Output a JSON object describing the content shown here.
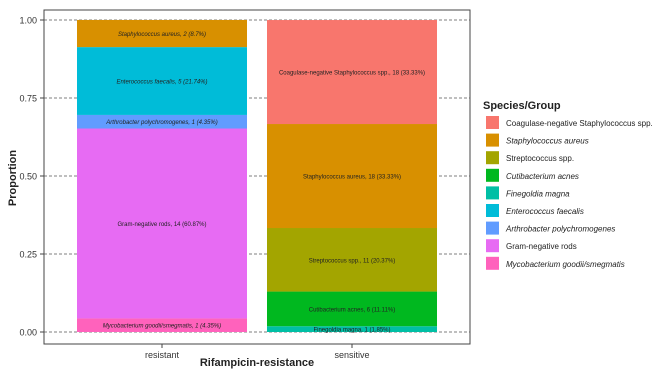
{
  "chart_data": {
    "type": "bar",
    "stacked": true,
    "normalized": true,
    "xlabel": "Rifampicin-resistance",
    "ylabel": "Proportion",
    "ylim": [
      0,
      1
    ],
    "yticks": [
      "0.00",
      "0.25",
      "0.50",
      "0.75",
      "1.00"
    ],
    "categories": [
      "resistant",
      "sensitive"
    ],
    "legend": {
      "title": "Species/Group",
      "position": "right",
      "entries": [
        {
          "label": "Coagulase-negative Staphylococcus spp.",
          "color": "#F8766D",
          "italic": false
        },
        {
          "label": "Staphylococcus aureus",
          "color": "#D89000",
          "italic": true
        },
        {
          "label": "Streptococcus spp.",
          "color": "#A3A500",
          "italic": false
        },
        {
          "label": "Cutibacterium acnes",
          "color": "#00B81F",
          "italic": true
        },
        {
          "label": "Finegoldia magna",
          "color": "#00BFA5",
          "italic": true
        },
        {
          "label": "Enterococcus faecalis",
          "color": "#00BCD8",
          "italic": true
        },
        {
          "label": "Arthrobacter polychromogenes",
          "color": "#619CFF",
          "italic": true
        },
        {
          "label": "Gram-negative rods",
          "color": "#E76BF3",
          "italic": false
        },
        {
          "label": "Mycobacterium goodii/smegmatis",
          "color": "#FF62BC",
          "italic": true
        }
      ]
    },
    "series": [
      {
        "category": "resistant",
        "segments": [
          {
            "group": "Mycobacterium goodii/smegmatis",
            "value": 0.0435,
            "label": "Mycobacterium goodii/smegmatis, 1 (4.35%)",
            "italic": true
          },
          {
            "group": "Gram-negative rods",
            "value": 0.6087,
            "label": "Gram-negative rods, 14 (60.87%)",
            "italic": false
          },
          {
            "group": "Arthrobacter polychromogenes",
            "value": 0.0435,
            "label": "Arthrobacter polychromogenes, 1 (4.35%)",
            "italic": true
          },
          {
            "group": "Enterococcus faecalis",
            "value": 0.2174,
            "label": "Enterococcus faecalis, 5 (21.74%)",
            "italic": true
          },
          {
            "group": "Staphylococcus aureus",
            "value": 0.087,
            "label": "Staphylococcus aureus, 2 (8.7%)",
            "italic": true
          }
        ]
      },
      {
        "category": "sensitive",
        "segments": [
          {
            "group": "Finegoldia magna",
            "value": 0.0185,
            "label": "Finegoldia magna, 1 (1.85%)",
            "italic": false
          },
          {
            "group": "Cutibacterium acnes",
            "value": 0.1111,
            "label": "Cutibacterium acnes, 6 (11.11%)",
            "italic": false
          },
          {
            "group": "Streptococcus spp.",
            "value": 0.2037,
            "label": "Streptococcus spp., 11 (20.37%)",
            "italic": false
          },
          {
            "group": "Staphylococcus aureus",
            "value": 0.3333,
            "label": "Staphylococcus aureus, 18 (33.33%)",
            "italic": false
          },
          {
            "group": "Coagulase-negative Staphylococcus spp.",
            "value": 0.3333,
            "label": "Coagulase-negative Staphylococcus spp., 18 (33.33%)",
            "italic": false
          }
        ]
      }
    ]
  }
}
